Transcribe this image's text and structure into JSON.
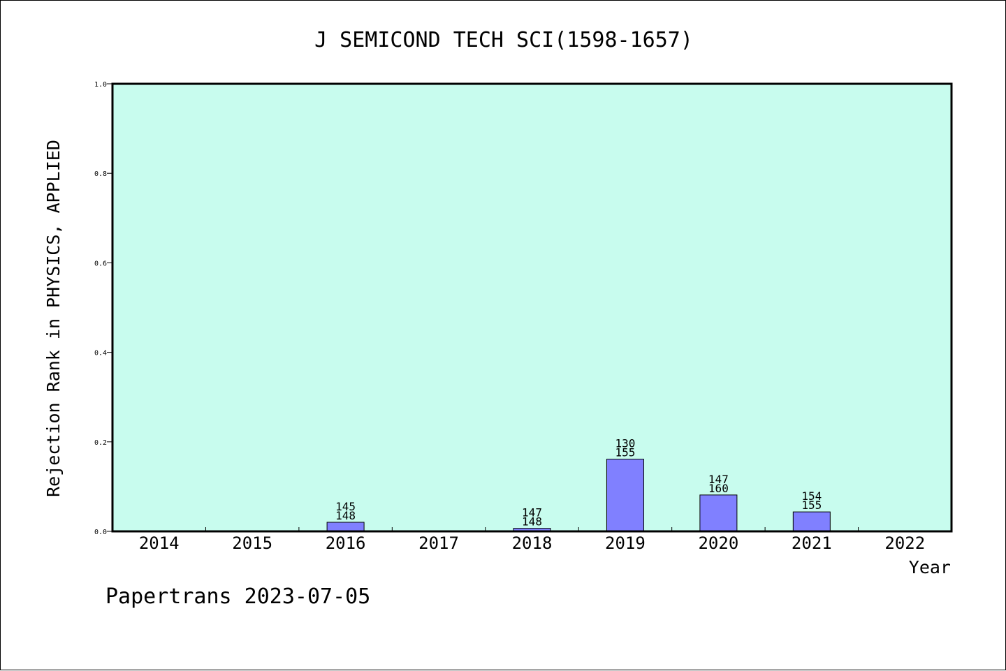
{
  "chart_data": {
    "type": "bar",
    "title": "J SEMICOND TECH SCI(1598-1657)",
    "xlabel": "Year",
    "ylabel": "Rejection Rank in PHYSICS, APPLIED",
    "categories": [
      "2014",
      "2015",
      "2016",
      "2017",
      "2018",
      "2019",
      "2020",
      "2021",
      "2022"
    ],
    "values": [
      null,
      null,
      0.0203,
      null,
      0.0068,
      0.1613,
      0.0813,
      0.0435,
      null
    ],
    "bar_labels": [
      null,
      null,
      [
        "145",
        "148"
      ],
      null,
      [
        "147",
        "148"
      ],
      [
        "130",
        "155"
      ],
      [
        "147",
        "160"
      ],
      [
        "154",
        "155"
      ],
      null
    ],
    "yticks": [
      "0.0",
      "0.2",
      "0.4",
      "0.6",
      "0.8",
      "1.0"
    ],
    "ylim": [
      0,
      1.0
    ],
    "grid": false,
    "legend": "none",
    "colors": {
      "plot_background": "#c8fcee",
      "bar_fill": "#8080ff",
      "bar_stroke": "#000000",
      "axis": "#000000"
    }
  },
  "footer": "Papertrans 2023-07-05"
}
